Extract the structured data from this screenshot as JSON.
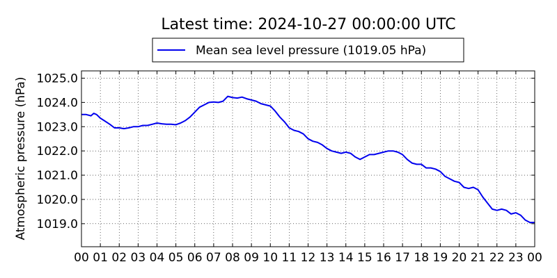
{
  "chart_data": {
    "type": "line",
    "title": "Latest time: 2024-10-27 00:00:00 UTC",
    "xlabel": "",
    "ylabel": "Atmospheric pressure (hPa)",
    "legend_location": "above plot, centered",
    "grid": true,
    "grid_style": "dotted",
    "xlim": [
      0,
      24
    ],
    "ylim": [
      1018.05,
      1025.3
    ],
    "x_tick_values": [
      0,
      1,
      2,
      3,
      4,
      5,
      6,
      7,
      8,
      9,
      10,
      11,
      12,
      13,
      14,
      15,
      16,
      17,
      18,
      19,
      20,
      21,
      22,
      23,
      24
    ],
    "x_tick_labels": [
      "00",
      "01",
      "02",
      "03",
      "04",
      "05",
      "06",
      "07",
      "08",
      "09",
      "10",
      "11",
      "12",
      "13",
      "14",
      "15",
      "16",
      "17",
      "18",
      "19",
      "20",
      "21",
      "22",
      "23",
      "00"
    ],
    "y_tick_values": [
      1019.0,
      1020.0,
      1021.0,
      1022.0,
      1023.0,
      1024.0,
      1025.0
    ],
    "y_tick_labels": [
      "1019.0",
      "1020.0",
      "1021.0",
      "1022.0",
      "1023.0",
      "1024.0",
      "1025.0"
    ],
    "series": [
      {
        "name": "Mean sea level pressure (1019.05 hPa)",
        "color": "#0000ee",
        "x": [
          0,
          0.25,
          0.5,
          0.65,
          0.8,
          1.0,
          1.2,
          1.5,
          1.75,
          2.0,
          2.25,
          2.5,
          2.75,
          3.0,
          3.25,
          3.5,
          3.75,
          4.0,
          4.25,
          4.5,
          4.75,
          5.0,
          5.25,
          5.5,
          5.75,
          6.0,
          6.25,
          6.5,
          6.75,
          7.0,
          7.25,
          7.5,
          7.75,
          8.0,
          8.25,
          8.5,
          8.75,
          9.0,
          9.25,
          9.5,
          9.75,
          10.0,
          10.25,
          10.5,
          10.75,
          11.0,
          11.25,
          11.5,
          11.75,
          12.0,
          12.25,
          12.5,
          12.75,
          13.0,
          13.25,
          13.5,
          13.75,
          14.0,
          14.25,
          14.5,
          14.75,
          15.0,
          15.25,
          15.5,
          15.75,
          16.0,
          16.25,
          16.5,
          16.75,
          17.0,
          17.25,
          17.5,
          17.75,
          18.0,
          18.25,
          18.5,
          18.75,
          19.0,
          19.25,
          19.5,
          19.75,
          20.0,
          20.25,
          20.5,
          20.75,
          21.0,
          21.25,
          21.5,
          21.75,
          22.0,
          22.25,
          22.5,
          22.75,
          23.0,
          23.25,
          23.5,
          23.75,
          24.0
        ],
        "y": [
          1023.5,
          1023.5,
          1023.45,
          1023.55,
          1023.5,
          1023.35,
          1023.25,
          1023.1,
          1022.95,
          1022.95,
          1022.92,
          1022.95,
          1023.0,
          1023.0,
          1023.05,
          1023.05,
          1023.1,
          1023.15,
          1023.12,
          1023.1,
          1023.1,
          1023.08,
          1023.15,
          1023.25,
          1023.4,
          1023.6,
          1023.8,
          1023.9,
          1024.0,
          1024.02,
          1024.0,
          1024.05,
          1024.25,
          1024.2,
          1024.18,
          1024.22,
          1024.15,
          1024.1,
          1024.05,
          1023.95,
          1023.9,
          1023.85,
          1023.65,
          1023.4,
          1023.2,
          1022.95,
          1022.85,
          1022.8,
          1022.7,
          1022.5,
          1022.4,
          1022.35,
          1022.25,
          1022.1,
          1022.0,
          1021.95,
          1021.9,
          1021.95,
          1021.9,
          1021.75,
          1021.65,
          1021.75,
          1021.85,
          1021.85,
          1021.9,
          1021.95,
          1022.0,
          1022.0,
          1021.95,
          1021.85,
          1021.65,
          1021.5,
          1021.45,
          1021.45,
          1021.3,
          1021.3,
          1021.25,
          1021.15,
          1020.95,
          1020.85,
          1020.75,
          1020.7,
          1020.5,
          1020.45,
          1020.5,
          1020.4,
          1020.1,
          1019.85,
          1019.6,
          1019.55,
          1019.6,
          1019.55,
          1019.4,
          1019.45,
          1019.35,
          1019.15,
          1019.05,
          1019.05
        ]
      }
    ]
  }
}
